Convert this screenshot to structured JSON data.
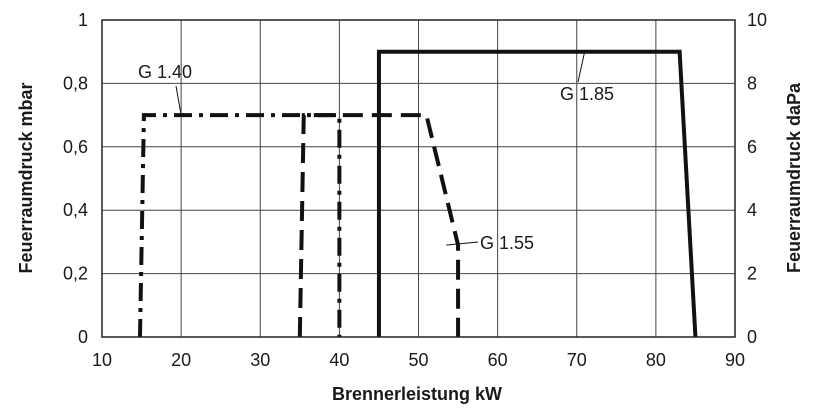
{
  "chart_data": {
    "type": "line",
    "xlabel": "Brennerleistung kW",
    "ylabel_left": "Feuerraumdruck mbar",
    "ylabel_right": "Feuerraumdruck daPa",
    "xlim": [
      10,
      90
    ],
    "ylim_left": [
      0,
      1
    ],
    "ylim_right": [
      0,
      10
    ],
    "x_ticks": [
      "10",
      "20",
      "30",
      "40",
      "50",
      "60",
      "70",
      "80",
      "90"
    ],
    "y_ticks_left": [
      "0",
      "0,2",
      "0,4",
      "0,6",
      "0,8",
      "1"
    ],
    "y_ticks_right": [
      "0",
      "2",
      "4",
      "6",
      "8",
      "10"
    ],
    "grid": true,
    "series": [
      {
        "name": "G 1.40",
        "style": "dashdot",
        "x": [
          14.8,
          15.3,
          40,
          40
        ],
        "y": [
          0,
          0.7,
          0.7,
          0
        ]
      },
      {
        "name": "G 1.55",
        "style": "dashed",
        "x": [
          35,
          35.5,
          51,
          55,
          55
        ],
        "y": [
          0,
          0.7,
          0.7,
          0.29,
          0
        ]
      },
      {
        "name": "G 1.85",
        "style": "solid",
        "x": [
          45,
          45,
          83,
          85,
          85
        ],
        "y": [
          0,
          0.9,
          0.9,
          0,
          0
        ]
      }
    ],
    "annotations": [
      {
        "text": "G 1.40",
        "at": [
          20,
          0.7
        ]
      },
      {
        "text": "G 1.55",
        "at": [
          53.5,
          0.29
        ]
      },
      {
        "text": "G 1.85",
        "at": [
          71,
          0.9
        ]
      }
    ]
  }
}
